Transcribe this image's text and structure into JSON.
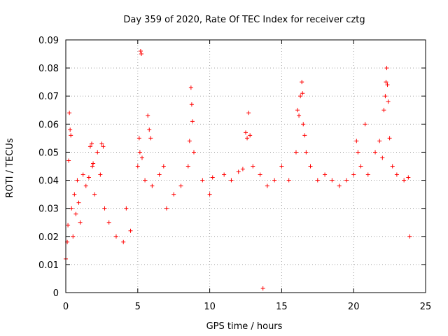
{
  "chart_data": {
    "type": "scatter",
    "title": "Day 359 of 2020, Rate Of TEC Index for receiver cztg",
    "xlabel": "GPS time / hours",
    "ylabel": "ROTI / TECUs",
    "xlim": [
      0,
      25
    ],
    "ylim": [
      0,
      0.09
    ],
    "x_ticks": [
      0,
      5,
      10,
      15,
      20,
      25
    ],
    "x_tick_labels": [
      "0",
      "5",
      "10",
      "15",
      "20",
      "25"
    ],
    "y_ticks": [
      0,
      0.01,
      0.02,
      0.03,
      0.04,
      0.05,
      0.06,
      0.07,
      0.08,
      0.09
    ],
    "y_tick_labels": [
      "0",
      "0.01",
      "0.02",
      "0.03",
      "0.04",
      "0.05",
      "0.06",
      "0.07",
      "0.08",
      "0.09"
    ],
    "grid": true,
    "marker": "plus",
    "color": "#ff0000",
    "series": [
      {
        "points": [
          [
            0.0,
            0.012
          ],
          [
            0.1,
            0.018
          ],
          [
            0.15,
            0.024
          ],
          [
            0.2,
            0.047
          ],
          [
            0.25,
            0.064
          ],
          [
            0.3,
            0.058
          ],
          [
            0.35,
            0.056
          ],
          [
            0.4,
            0.03
          ],
          [
            0.5,
            0.02
          ],
          [
            0.6,
            0.035
          ],
          [
            0.7,
            0.028
          ],
          [
            0.8,
            0.04
          ],
          [
            0.9,
            0.032
          ],
          [
            1.0,
            0.025
          ],
          [
            1.2,
            0.042
          ],
          [
            1.4,
            0.038
          ],
          [
            1.6,
            0.041
          ],
          [
            1.7,
            0.052
          ],
          [
            1.8,
            0.053
          ],
          [
            1.85,
            0.045
          ],
          [
            1.9,
            0.046
          ],
          [
            2.0,
            0.035
          ],
          [
            2.2,
            0.05
          ],
          [
            2.4,
            0.042
          ],
          [
            2.5,
            0.053
          ],
          [
            2.6,
            0.052
          ],
          [
            2.7,
            0.03
          ],
          [
            3.0,
            0.025
          ],
          [
            3.5,
            0.02
          ],
          [
            4.0,
            0.018
          ],
          [
            4.2,
            0.03
          ],
          [
            4.5,
            0.022
          ],
          [
            5.0,
            0.045
          ],
          [
            5.1,
            0.055
          ],
          [
            5.15,
            0.05
          ],
          [
            5.2,
            0.086
          ],
          [
            5.25,
            0.085
          ],
          [
            5.3,
            0.048
          ],
          [
            5.5,
            0.04
          ],
          [
            5.7,
            0.063
          ],
          [
            5.8,
            0.058
          ],
          [
            5.9,
            0.055
          ],
          [
            6.0,
            0.038
          ],
          [
            6.5,
            0.042
          ],
          [
            6.8,
            0.045
          ],
          [
            7.0,
            0.03
          ],
          [
            7.5,
            0.035
          ],
          [
            8.0,
            0.038
          ],
          [
            8.5,
            0.045
          ],
          [
            8.6,
            0.054
          ],
          [
            8.7,
            0.073
          ],
          [
            8.75,
            0.067
          ],
          [
            8.8,
            0.061
          ],
          [
            8.9,
            0.05
          ],
          [
            9.5,
            0.04
          ],
          [
            10.0,
            0.035
          ],
          [
            10.2,
            0.041
          ],
          [
            11.0,
            0.042
          ],
          [
            11.5,
            0.04
          ],
          [
            12.0,
            0.043
          ],
          [
            12.3,
            0.044
          ],
          [
            12.5,
            0.057
          ],
          [
            12.6,
            0.055
          ],
          [
            12.7,
            0.064
          ],
          [
            12.8,
            0.056
          ],
          [
            13.0,
            0.045
          ],
          [
            13.5,
            0.042
          ],
          [
            13.7,
            0.0015
          ],
          [
            14.0,
            0.038
          ],
          [
            14.5,
            0.04
          ],
          [
            15.0,
            0.045
          ],
          [
            15.5,
            0.04
          ],
          [
            16.0,
            0.05
          ],
          [
            16.1,
            0.065
          ],
          [
            16.2,
            0.063
          ],
          [
            16.3,
            0.07
          ],
          [
            16.4,
            0.075
          ],
          [
            16.45,
            0.071
          ],
          [
            16.5,
            0.06
          ],
          [
            16.6,
            0.056
          ],
          [
            16.7,
            0.05
          ],
          [
            17.0,
            0.045
          ],
          [
            17.5,
            0.04
          ],
          [
            18.0,
            0.042
          ],
          [
            18.5,
            0.04
          ],
          [
            19.0,
            0.038
          ],
          [
            19.5,
            0.04
          ],
          [
            20.0,
            0.042
          ],
          [
            20.2,
            0.054
          ],
          [
            20.3,
            0.05
          ],
          [
            20.5,
            0.045
          ],
          [
            20.8,
            0.06
          ],
          [
            21.0,
            0.042
          ],
          [
            21.5,
            0.05
          ],
          [
            21.8,
            0.054
          ],
          [
            22.0,
            0.048
          ],
          [
            22.1,
            0.065
          ],
          [
            22.2,
            0.07
          ],
          [
            22.25,
            0.075
          ],
          [
            22.3,
            0.08
          ],
          [
            22.35,
            0.074
          ],
          [
            22.4,
            0.068
          ],
          [
            22.5,
            0.055
          ],
          [
            22.7,
            0.045
          ],
          [
            23.0,
            0.042
          ],
          [
            23.5,
            0.04
          ],
          [
            23.8,
            0.041
          ],
          [
            23.9,
            0.02
          ]
        ]
      }
    ]
  }
}
